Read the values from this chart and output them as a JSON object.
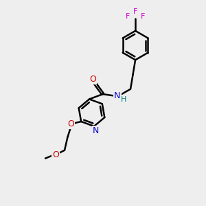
{
  "bg_color": "#eeeeee",
  "bond_color": "#000000",
  "N_color": "#0000cc",
  "O_color": "#cc0000",
  "F_color": "#cc00cc",
  "NH_color": "#008080",
  "line_width": 1.8,
  "dbo": 0.055,
  "figsize": [
    3.0,
    3.0
  ],
  "dpi": 100,
  "xlim": [
    0,
    10
  ],
  "ylim": [
    0,
    10
  ]
}
